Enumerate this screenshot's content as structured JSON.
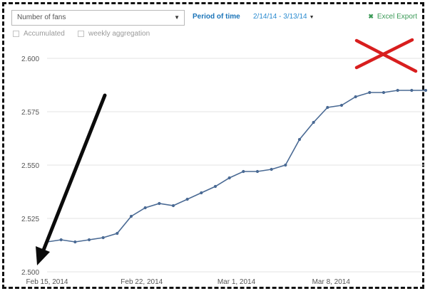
{
  "controls": {
    "metric_select": "Number of fans",
    "period_label": "Period of time",
    "period_value": "2/14/14 - 3/13/14",
    "excel_label": "Excel Export",
    "checkbox_accumulated": "Accumulated",
    "checkbox_weekly": "weekly aggregation"
  },
  "colors": {
    "line": "#4a6a94",
    "grid": "#e3e3e3",
    "cross": "#d81e1e",
    "arrow": "#0b0b0b",
    "accent": "#1b74b8"
  },
  "chart_data": {
    "type": "line",
    "x_ticks": [
      "Feb 15, 2014",
      "Feb 22, 2014",
      "Mar 1, 2014",
      "Mar 8, 2014"
    ],
    "y_ticks": [
      "2.500",
      "2.525",
      "2.550",
      "2.575",
      "2.600"
    ],
    "ylim": [
      2500,
      2600
    ],
    "x": [
      "2014-02-15",
      "2014-02-16",
      "2014-02-17",
      "2014-02-18",
      "2014-02-19",
      "2014-02-20",
      "2014-02-21",
      "2014-02-22",
      "2014-02-23",
      "2014-02-24",
      "2014-02-25",
      "2014-02-26",
      "2014-02-27",
      "2014-02-28",
      "2014-03-01",
      "2014-03-02",
      "2014-03-03",
      "2014-03-04",
      "2014-03-05",
      "2014-03-06",
      "2014-03-07",
      "2014-03-08",
      "2014-03-09",
      "2014-03-10",
      "2014-03-11",
      "2014-03-12",
      "2014-03-13",
      "2014-03-14"
    ],
    "series": [
      {
        "values": [
          2514,
          2515,
          2514,
          2515,
          2516,
          2518,
          2526,
          2530,
          2532,
          2531,
          2534,
          2537,
          2540,
          2544,
          2547,
          2547,
          2548,
          2550,
          2562,
          2570,
          2577,
          2578,
          2582,
          2584,
          2584,
          2585,
          2585,
          2585
        ]
      }
    ],
    "grid": true,
    "legend": "none"
  }
}
